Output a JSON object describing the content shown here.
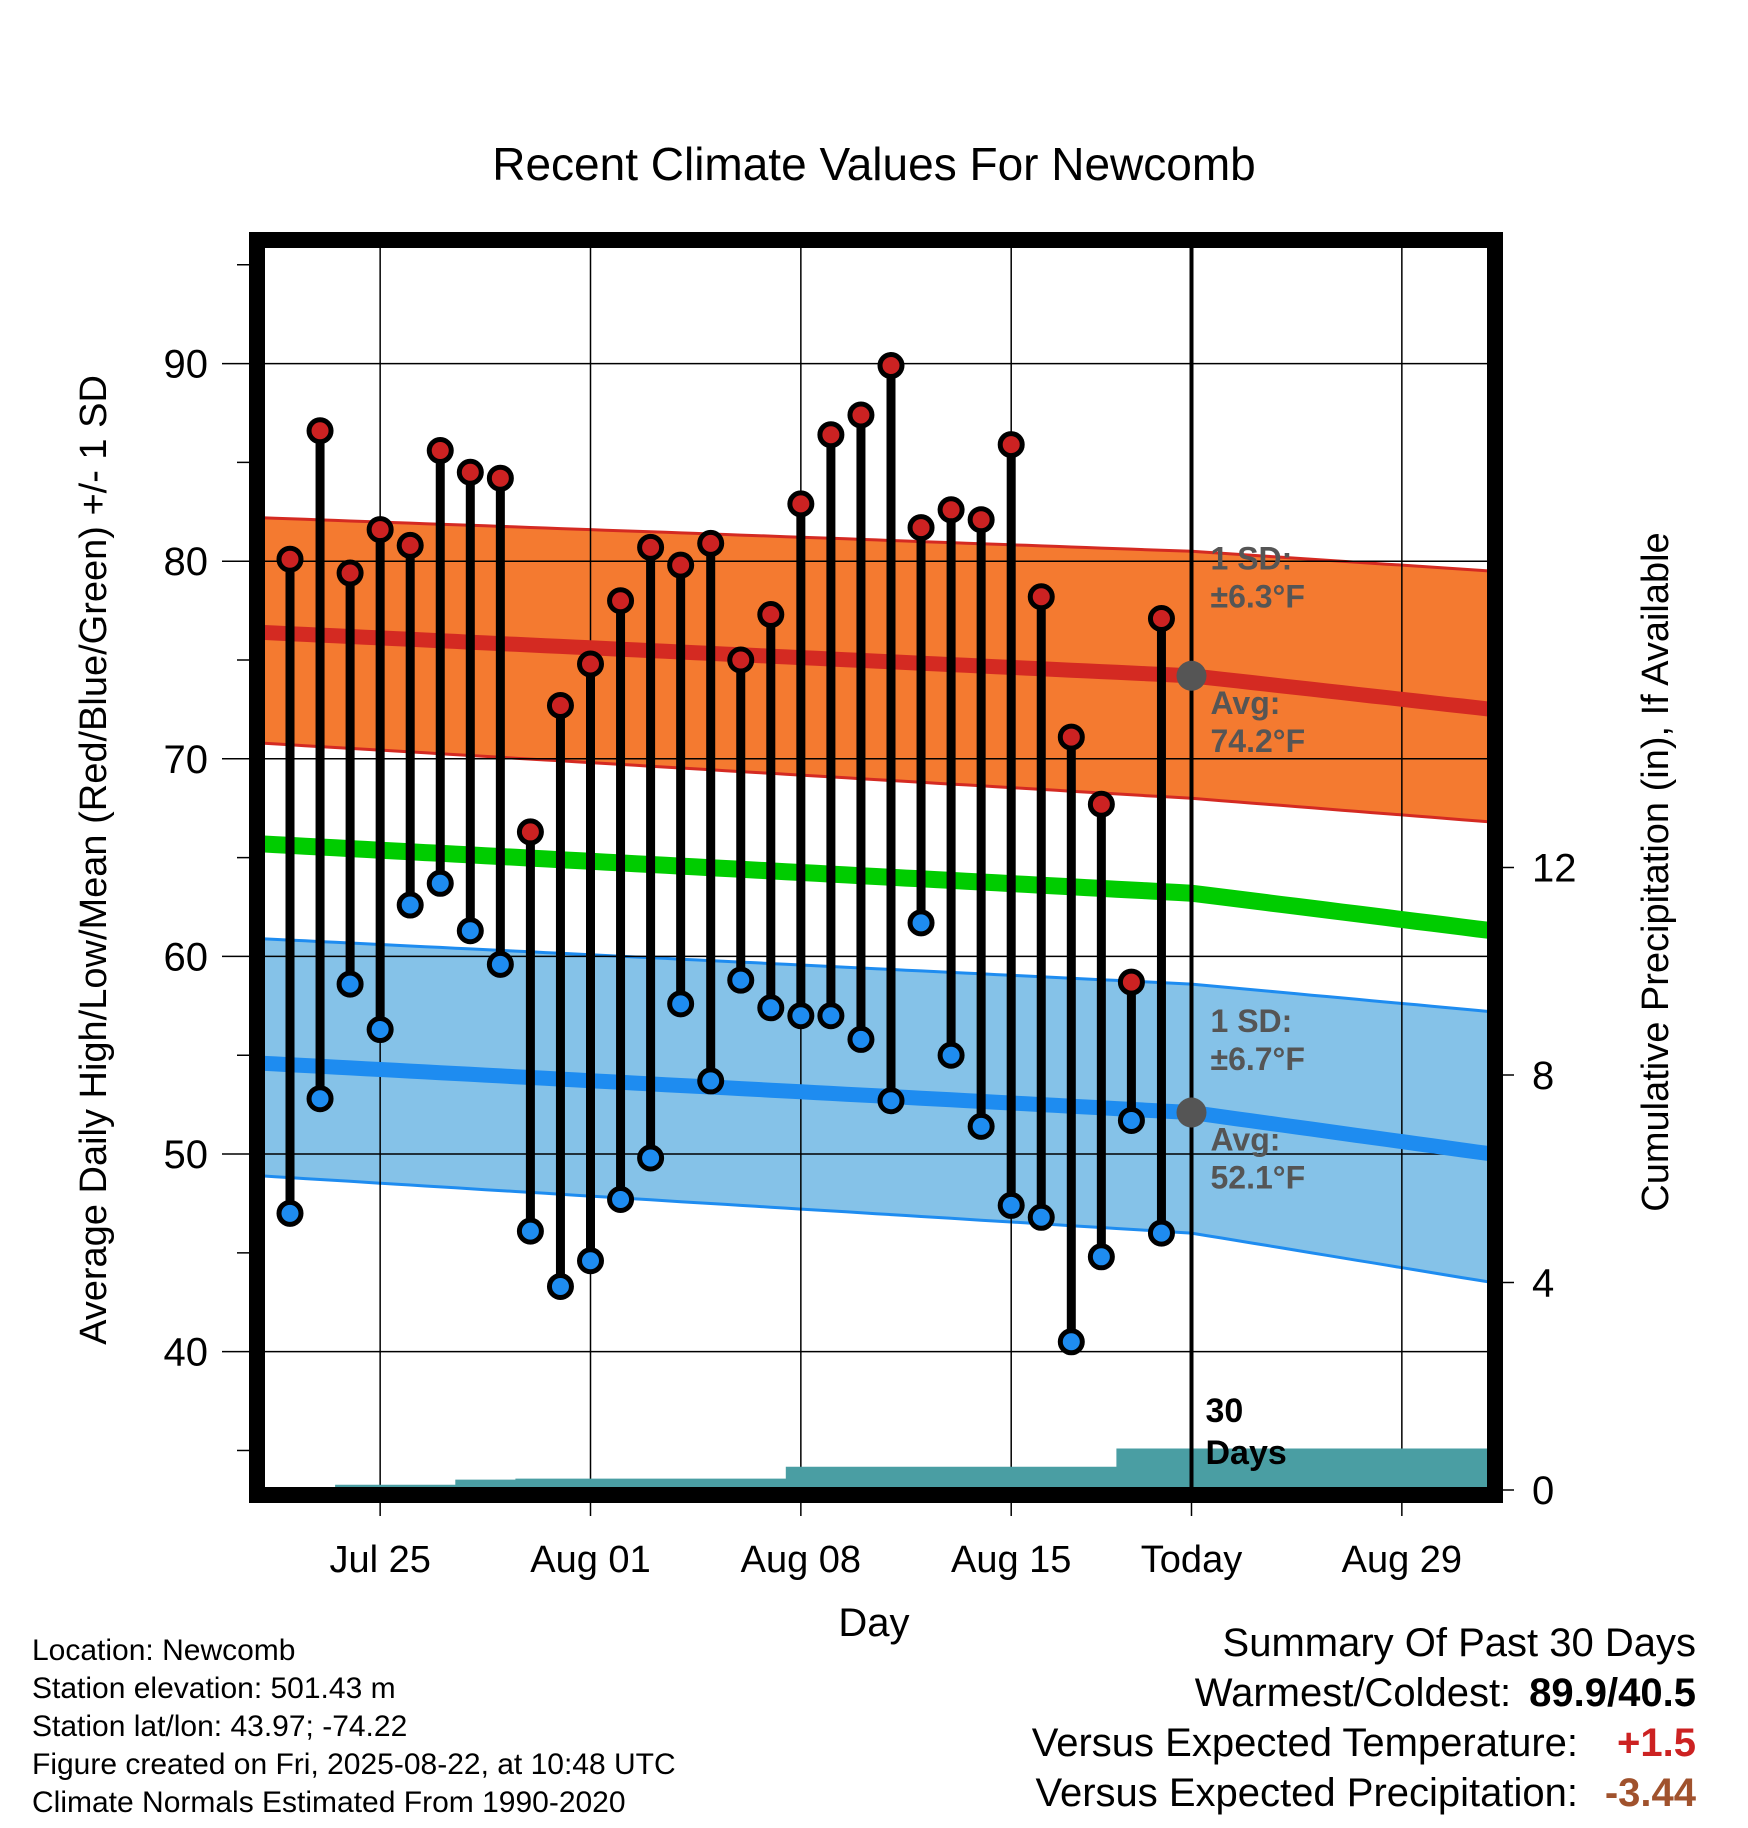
{
  "chart_data": {
    "type": "line",
    "title": "Recent Climate Values For Newcomb",
    "xlabel": "Day",
    "ylabel_left": "Average Daily High/Low/Mean (Red/Blue/Green) +/- 1 SD",
    "ylabel_right": "Cumulative Precipitation (in), If Available",
    "x_tick_labels": [
      "Jul 25",
      "Aug 01",
      "Aug 08",
      "Aug 15",
      "Today",
      "Aug 29"
    ],
    "y_left_ticks": [
      "40",
      "50",
      "60",
      "70",
      "80",
      "90"
    ],
    "y_right_ticks": [
      "0",
      "4",
      "8",
      "12"
    ],
    "ylim_left": [
      33,
      96
    ],
    "ylim_right": [
      0,
      24
    ],
    "grid": true,
    "daily_high_f": [
      80.1,
      86.6,
      79.4,
      81.6,
      80.8,
      85.6,
      84.5,
      84.2,
      66.3,
      72.7,
      74.8,
      78.0,
      80.7,
      79.8,
      80.9,
      75.0,
      77.3,
      82.9,
      86.4,
      87.4,
      89.9,
      81.7,
      82.6,
      82.1,
      85.9,
      78.2,
      71.1,
      67.7,
      58.7,
      77.1
    ],
    "daily_low_f": [
      47.0,
      52.8,
      58.6,
      56.3,
      62.6,
      63.7,
      61.3,
      59.6,
      46.1,
      43.3,
      44.6,
      47.7,
      49.8,
      57.6,
      53.7,
      58.8,
      57.4,
      57.0,
      57.0,
      55.8,
      52.7,
      61.7,
      55.0,
      51.4,
      47.4,
      46.8,
      40.5,
      44.8,
      51.7,
      46.0
    ],
    "normal_high": {
      "name": "Avg: 74.2°F",
      "avg_start": 76.4,
      "avg_today": 74.2,
      "avg_end": 72.5,
      "sd_upper_start": 82.2,
      "sd_upper_today": 80.5,
      "sd_upper_end": 79.5,
      "sd_lower_start": 70.8,
      "sd_lower_today": 68.0,
      "sd_lower_end": 66.8
    },
    "normal_mean": {
      "start": 65.7,
      "today": 63.2,
      "end": 61.3
    },
    "normal_low": {
      "name": "Avg: 52.1°F",
      "avg_start": 54.6,
      "avg_today": 52.1,
      "avg_end": 50.0,
      "sd_upper_start": 60.9,
      "sd_upper_today": 58.6,
      "sd_upper_end": 57.2,
      "sd_lower_start": 48.9,
      "sd_lower_today": 46.0,
      "sd_lower_end": 43.5
    },
    "cumulative_precip_in": [
      0,
      0,
      0,
      0.1,
      0.1,
      0.1,
      0.1,
      0.2,
      0.2,
      0.22,
      0.22,
      0.22,
      0.22,
      0.22,
      0.22,
      0.22,
      0.22,
      0.22,
      0.45,
      0.45,
      0.45,
      0.45,
      0.45,
      0.45,
      0.45,
      0.45,
      0.45,
      0.45,
      0.45,
      0.8,
      0.8,
      0.8,
      0.8
    ],
    "annotations": {
      "high_sd_line1": "1 SD:",
      "high_sd_line2": "±6.3°F",
      "high_avg_line1": "Avg:",
      "high_avg_line2": "74.2°F",
      "low_sd_line1": "1 SD:",
      "low_sd_line2": "±6.7°F",
      "low_avg_line1": "Avg:",
      "low_avg_line2": "52.1°F",
      "days_line1": "30",
      "days_line2": "Days"
    },
    "colors": {
      "high_band": "#f47a30",
      "high_line": "#d42a22",
      "high_marker": "#cc2222",
      "low_band": "#85c2e8",
      "low_line": "#1e8cf0",
      "low_marker": "#1e8cf0",
      "mean_line": "#00cc00",
      "precip": "#4a9ea3",
      "annotation": "#555555"
    }
  },
  "metadata": {
    "location": "Location: Newcomb",
    "elevation": "Station elevation: 501.43 m",
    "latlon": "Station lat/lon: 43.97; -74.22",
    "created": "Figure created on Fri, 2025-08-22, at 10:48 UTC",
    "normals": "Climate Normals Estimated From 1990-2020"
  },
  "summary": {
    "title": "Summary Of Past 30 Days",
    "warmest_label": "Warmest/Coldest:",
    "warmest_value": "89.9/40.5",
    "temp_label": "Versus Expected Temperature:",
    "temp_value": "+1.5",
    "temp_color": "#cc2222",
    "precip_label": "Versus Expected Precipitation:",
    "precip_value": "-3.44",
    "precip_color": "#a0522d"
  }
}
